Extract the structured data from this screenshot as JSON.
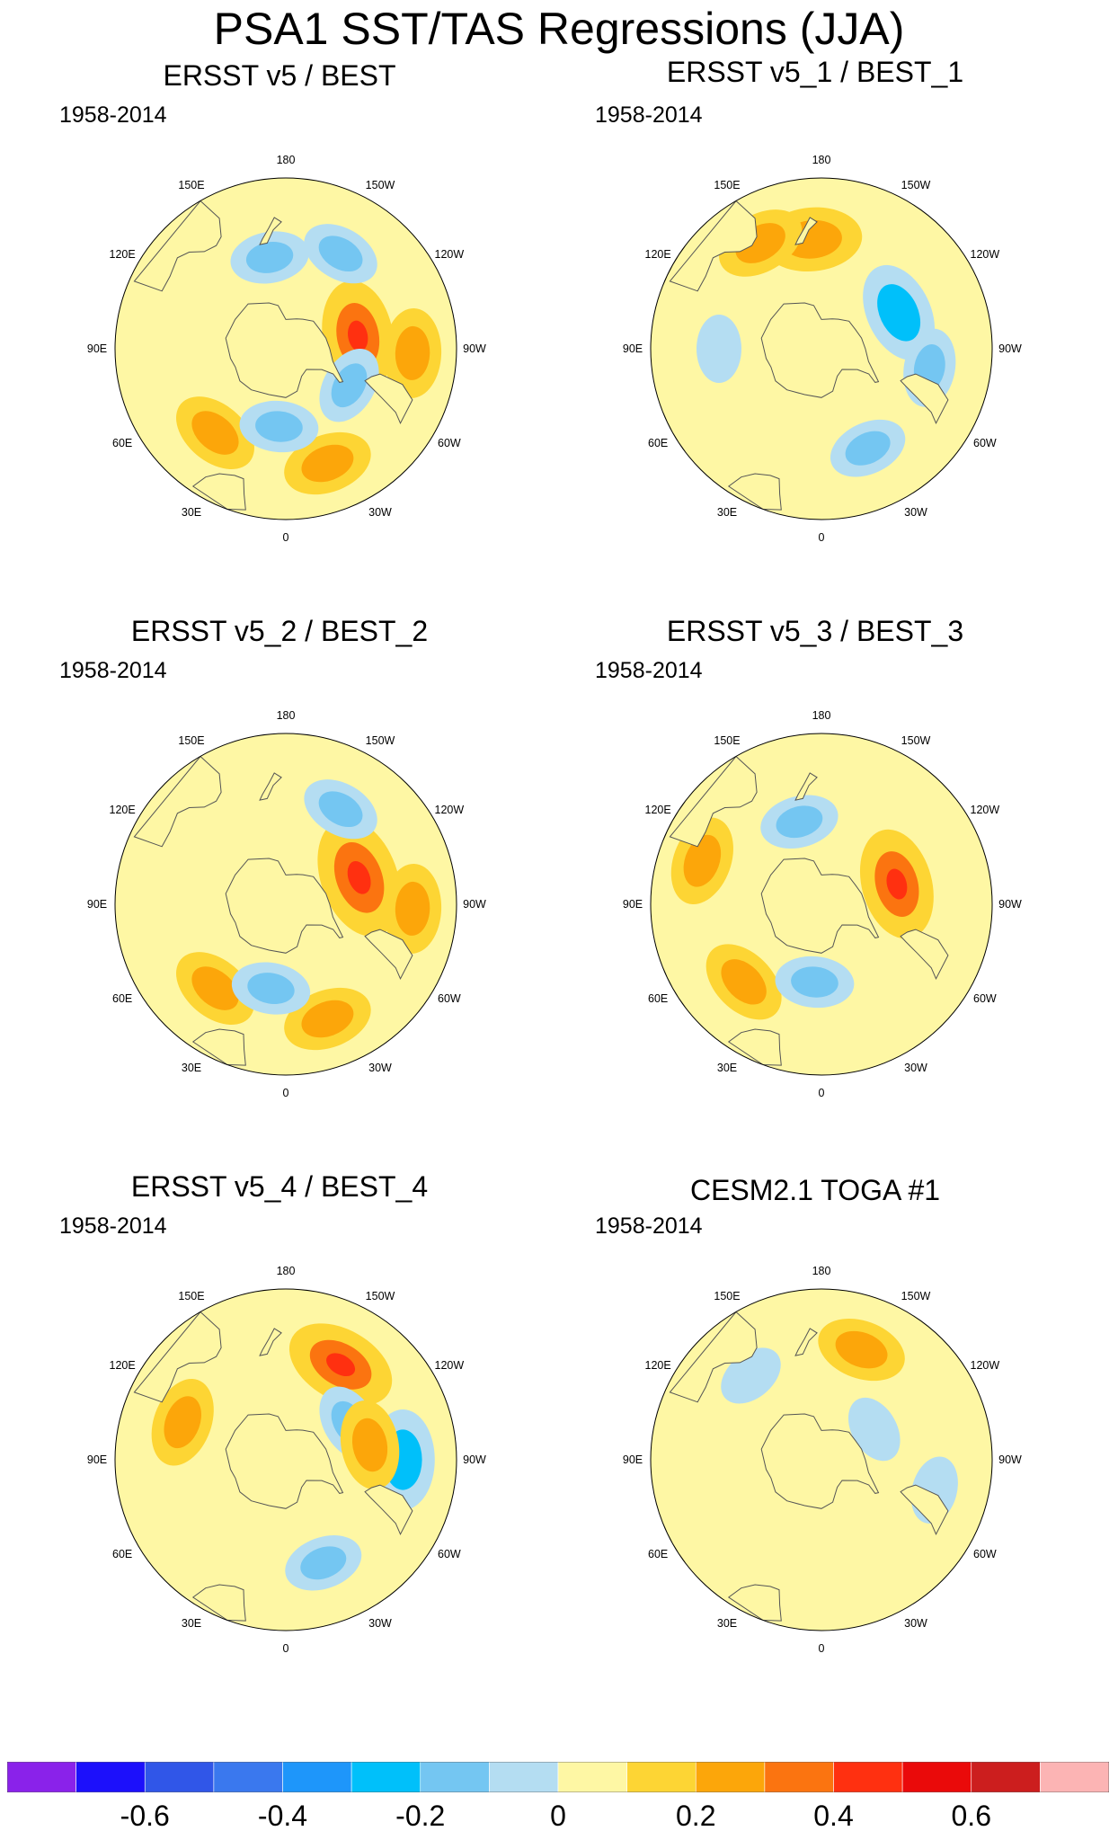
{
  "title": "PSA1 SST/TAS Regressions (JJA)",
  "panels": [
    {
      "title": "ERSST v5 / BEST",
      "period": "1958-2014"
    },
    {
      "title": "ERSST v5_1 / BEST_1",
      "period": "1958-2014"
    },
    {
      "title": "ERSST v5_2 / BEST_2",
      "period": "1958-2014"
    },
    {
      "title": "ERSST v5_3 / BEST_3",
      "period": "1958-2014"
    },
    {
      "title": "ERSST v5_4 / BEST_4",
      "period": "1958-2014"
    },
    {
      "title": "CESM2.1 TOGA #1",
      "period": "1958-2014"
    }
  ],
  "longitude_labels": [
    {
      "lon": 0,
      "label": "0"
    },
    {
      "lon": 30,
      "label": "30E"
    },
    {
      "lon": 60,
      "label": "60E"
    },
    {
      "lon": 90,
      "label": "90E"
    },
    {
      "lon": 120,
      "label": "120E"
    },
    {
      "lon": 150,
      "label": "150E"
    },
    {
      "lon": 180,
      "label": "180"
    },
    {
      "lon": -150,
      "label": "150W"
    },
    {
      "lon": -120,
      "label": "120W"
    },
    {
      "lon": -90,
      "label": "90W"
    },
    {
      "lon": -60,
      "label": "60W"
    },
    {
      "lon": -30,
      "label": "30W"
    }
  ],
  "chart_data": {
    "type": "heatmap",
    "projection": "south polar stereographic",
    "variable": "SST/TAS regression onto PSA1 (JJA)",
    "colorbar": {
      "levels": [
        -0.7,
        -0.6,
        -0.5,
        -0.4,
        -0.3,
        -0.2,
        -0.1,
        0,
        0.1,
        0.2,
        0.3,
        0.4,
        0.5,
        0.6,
        0.7
      ],
      "colors": [
        "#8a22ea",
        "#1c10fb",
        "#3056e8",
        "#3a78ee",
        "#1e96fa",
        "#00c0fa",
        "#74c6f2",
        "#b4ddf2",
        "#fef7a4",
        "#fdd534",
        "#fca60a",
        "#fb7410",
        "#ff3010",
        "#ea0a0a",
        "#cc1e1e",
        "#fcb4b4"
      ],
      "tick_values": [
        -0.6,
        -0.4,
        -0.2,
        0,
        0.2,
        0.4,
        0.6
      ],
      "tick_labels": [
        "-0.6",
        "-0.4",
        "-0.2",
        "0",
        "0.2",
        "0.4",
        "0.6"
      ]
    },
    "panel_anomalies": [
      [
        {
          "lon": -20,
          "lat": -40,
          "value": 0.2
        },
        {
          "lon": 40,
          "lat": -45,
          "value": 0.2
        },
        {
          "lon": -100,
          "lat": -60,
          "value": 0.3
        },
        {
          "lon": -88,
          "lat": -38,
          "value": 0.2
        },
        {
          "lon": -150,
          "lat": -45,
          "value": -0.15
        },
        {
          "lon": 170,
          "lat": -52,
          "value": -0.15
        },
        {
          "lon": 5,
          "lat": -58,
          "value": -0.15
        },
        {
          "lon": -60,
          "lat": -60,
          "value": -0.15
        }
      ],
      [
        {
          "lon": -115,
          "lat": -55,
          "value": -0.25
        },
        {
          "lon": -25,
          "lat": -45,
          "value": -0.15
        },
        {
          "lon": 175,
          "lat": -45,
          "value": 0.25
        },
        {
          "lon": 150,
          "lat": -40,
          "value": 0.2
        },
        {
          "lon": -80,
          "lat": -45,
          "value": -0.15
        },
        {
          "lon": 90,
          "lat": -48,
          "value": -0.1
        }
      ],
      [
        {
          "lon": -20,
          "lat": -40,
          "value": 0.2
        },
        {
          "lon": 40,
          "lat": -45,
          "value": 0.2
        },
        {
          "lon": -110,
          "lat": -58,
          "value": 0.35
        },
        {
          "lon": -150,
          "lat": -45,
          "value": -0.15
        },
        {
          "lon": 10,
          "lat": -55,
          "value": -0.15
        },
        {
          "lon": -88,
          "lat": -38,
          "value": 0.2
        }
      ],
      [
        {
          "lon": -105,
          "lat": -58,
          "value": 0.3
        },
        {
          "lon": 45,
          "lat": -45,
          "value": 0.2
        },
        {
          "lon": 165,
          "lat": -55,
          "value": -0.15
        },
        {
          "lon": 5,
          "lat": -58,
          "value": -0.15
        },
        {
          "lon": 110,
          "lat": -38,
          "value": 0.2
        }
      ],
      [
        {
          "lon": -150,
          "lat": -45,
          "value": 0.3
        },
        {
          "lon": -120,
          "lat": -60,
          "value": -0.15
        },
        {
          "lon": -90,
          "lat": -42,
          "value": -0.25
        },
        {
          "lon": -20,
          "lat": -45,
          "value": -0.15
        },
        {
          "lon": 110,
          "lat": -45,
          "value": 0.2
        },
        {
          "lon": -100,
          "lat": -55,
          "value": 0.2
        }
      ],
      [
        {
          "lon": -160,
          "lat": -42,
          "value": 0.2
        },
        {
          "lon": -75,
          "lat": -42,
          "value": -0.1
        },
        {
          "lon": 140,
          "lat": -45,
          "value": -0.1
        },
        {
          "lon": -120,
          "lat": -65,
          "value": -0.1
        }
      ]
    ]
  }
}
